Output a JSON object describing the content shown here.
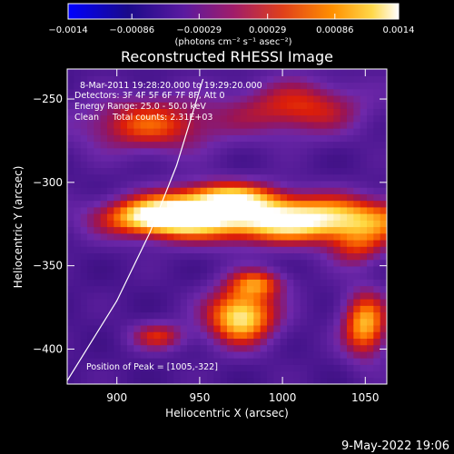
{
  "chart_data": {
    "type": "heatmap",
    "title": "Reconstructed RHESSI Image",
    "xlabel": "Heliocentric X (arcsec)",
    "ylabel": "Heliocentric Y (arcsec)",
    "xlim": [
      870,
      1063
    ],
    "ylim": [
      -421,
      -232
    ],
    "x_ticks": [
      900,
      950,
      1000,
      1050
    ],
    "y_ticks": [
      -400,
      -350,
      -300,
      -250
    ],
    "colorbar": {
      "label": "(photons cm⁻² s⁻¹ asec⁻²)",
      "range": [
        -0.0014,
        0.0014
      ],
      "ticks": [
        "-0.0014",
        "-0.00086",
        "-0.00029",
        "0.00029",
        "0.00086",
        "0.0014"
      ]
    },
    "annotations": [
      "8-Mar-2011 19:28:20.000 to 19:29:20.000",
      "Detectors: 3F 4F 5F 6F 7F 8F, Att 0",
      "Energy Range: 25.0 - 50.0 keV",
      "Clean     Total counts: 2.31E+03"
    ],
    "peak_label": "Position of Peak = [1005,-322]",
    "peak": [
      1005,
      -322
    ],
    "sources": [
      {
        "x": 1005,
        "y": -322,
        "sx": 60,
        "sy": 10,
        "amp": 1.0
      },
      {
        "x": 925,
        "y": -320,
        "sx": 22,
        "sy": 8,
        "amp": 0.75
      },
      {
        "x": 965,
        "y": -308,
        "sx": 22,
        "sy": 7,
        "amp": 0.6
      },
      {
        "x": 920,
        "y": -265,
        "sx": 30,
        "sy": 12,
        "amp": 0.55
      },
      {
        "x": 1010,
        "y": -255,
        "sx": 28,
        "sy": 12,
        "amp": 0.5
      },
      {
        "x": 975,
        "y": -380,
        "sx": 15,
        "sy": 12,
        "amp": 0.9
      },
      {
        "x": 1050,
        "y": -385,
        "sx": 10,
        "sy": 14,
        "amp": 0.75
      },
      {
        "x": 925,
        "y": -392,
        "sx": 12,
        "sy": 6,
        "amp": 0.45
      },
      {
        "x": 1045,
        "y": -340,
        "sx": 12,
        "sy": 8,
        "amp": 0.35
      },
      {
        "x": 985,
        "y": -360,
        "sx": 12,
        "sy": 6,
        "amp": 0.5
      }
    ],
    "limb_curve": [
      [
        870,
        -419
      ],
      [
        900,
        -371
      ],
      [
        920,
        -330
      ],
      [
        936,
        -290
      ],
      [
        952,
        -238
      ]
    ]
  },
  "timestamp": "9-May-2022 19:06"
}
